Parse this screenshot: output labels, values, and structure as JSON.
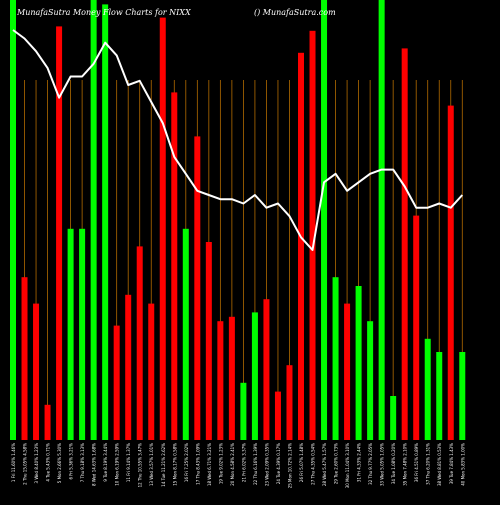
{
  "header": {
    "left": "MunafaSutra  Money Flow  Charts for NIXX",
    "right": "() MunafaSutra.com"
  },
  "chart_data": {
    "type": "bar",
    "title": "MunafaSutra  Money Flow  Charts for NIXX",
    "bar_scale": [
      0,
      100
    ],
    "colors": {
      "up": "#00ff00",
      "down": "#ff0000",
      "line": "#ffffff",
      "grid": "#b26b00",
      "background": "#000000"
    },
    "categories": [
      "1 Fri 11.60% 1.46%",
      "2 Thu 15.05% 4.58%",
      "3 Wed 8.40% 1.23%",
      "4 Tue 5.43% 0.71%",
      "5 Mon 2.66% 5.30%",
      "6 Fri 5.36% 3.21%",
      "7 Thu 9.18% 3.13%",
      "8 Wed 14.63% 1.68%",
      "9 Tue 8.19% 3.44%",
      "10 Mon 6.19% 2.59%",
      "11 Fri 9.14% 1.37%",
      "12 Thu 10.55% 3.47%",
      "13 Wed 3.57% 1.01%",
      "14 Tue 11.21% 2.62%",
      "15 Mon 8.17% 0.58%",
      "16 Fri 7.25% 2.02%",
      "17 Thu 8.43% 1.09%",
      "18 Wed 6.71% 3.21%",
      "19 Tue 9.02% 1.23%",
      "20 Mon 4.58% 2.41%",
      "21 Fri 6.02% 3.37%",
      "22 Thu 6.16% 1.39%",
      "23 Wed 2.09% 0.35%",
      "24 Tue 4.39% 0.17%",
      "25 Mon 10.72% 2.14%",
      "26 Fri 5.07% 1.48%",
      "27 Thu 4.35% 0.54%",
      "28 Wed 5.47% 1.57%",
      "29 Tue 2.60% 0.73%",
      "30 Mon 11.04% 3.10%",
      "31 Fri 4.33% 2.44%",
      "32 Thu 9.77% 2.05%",
      "33 Wed 5.05% 1.05%",
      "34 Tue 1.08% 0.20%",
      "35 Mon 7.48% 2.10%",
      "36 Fri 4.51% 0.89%",
      "37 Thu 6.20% 1.31%",
      "38 Wed 8.81% 0.53%",
      "39 Tue 7.84% 1.43%",
      "40 Mon 5.83% 1.00%"
    ],
    "values": [
      100,
      37,
      31,
      8,
      94,
      48,
      48,
      100,
      99,
      26,
      33,
      44,
      31,
      96,
      79,
      48,
      69,
      45,
      27,
      28,
      13,
      29,
      32,
      11,
      17,
      88,
      93,
      100,
      37,
      31,
      35,
      27,
      100,
      10,
      89,
      51,
      23,
      20,
      76,
      20
    ],
    "directions": [
      "up",
      "down",
      "down",
      "down",
      "down",
      "up",
      "up",
      "up",
      "up",
      "down",
      "down",
      "down",
      "down",
      "down",
      "down",
      "up",
      "down",
      "down",
      "down",
      "down",
      "up",
      "up",
      "down",
      "down",
      "down",
      "down",
      "down",
      "up",
      "up",
      "down",
      "up",
      "up",
      "up",
      "up",
      "down",
      "down",
      "up",
      "up",
      "down",
      "up"
    ],
    "line_values": [
      100,
      98,
      95,
      91,
      84,
      89,
      89,
      92,
      97,
      94,
      87,
      88,
      83,
      78,
      70,
      66,
      62,
      61,
      60,
      60,
      59,
      61,
      58,
      59,
      56,
      51,
      48,
      64,
      66,
      62,
      64,
      66,
      67,
      67,
      63,
      58,
      58,
      59,
      58,
      61
    ],
    "grid": true,
    "legend": "none"
  }
}
